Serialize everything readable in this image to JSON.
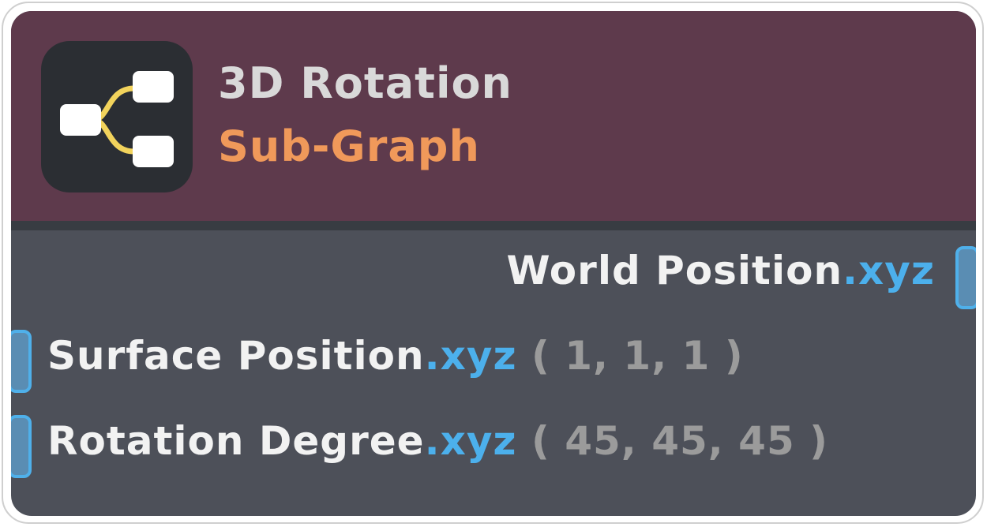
{
  "node": {
    "title": "3D Rotation",
    "subtitle": "Sub-Graph",
    "icon": "subgraph-tree-icon",
    "colors": {
      "header": "#5e3a4c",
      "body": "#4d5059",
      "title": "#d9d9d9",
      "subtitle": "#f0995a",
      "swizzle": "#4cb0ec",
      "port": "#4fb0ea"
    },
    "outputs": [
      {
        "label": "World Position",
        "swizzle": ".xyz"
      }
    ],
    "inputs": [
      {
        "label": "Surface Position",
        "swizzle": ".xyz",
        "value": "( 1, 1, 1 )"
      },
      {
        "label": "Rotation Degree",
        "swizzle": ".xyz",
        "value": "( 45, 45, 45 )"
      }
    ]
  }
}
